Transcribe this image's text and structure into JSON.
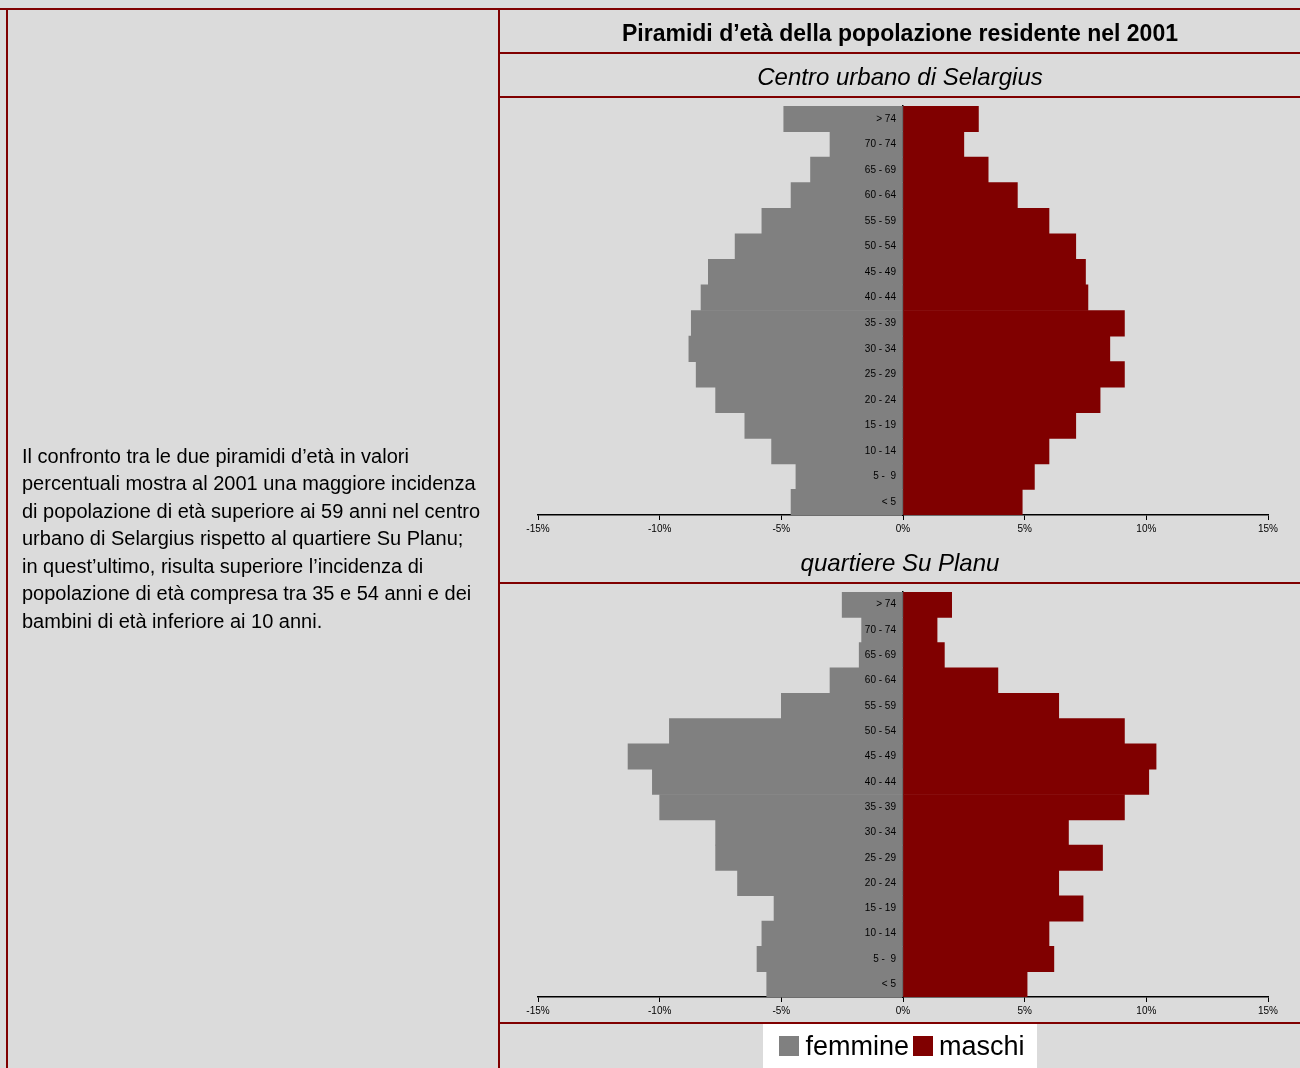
{
  "chart_data": [
    {
      "type": "other",
      "annotations": [
        "Il confronto tra le due piramidi d’età in valori percentuali mostra al 2001 una maggiore incidenza di popolazione di età superiore ai 59 anni nel centro urbano di Selargius rispetto al quartiere Su Planu; in quest’ultimo, risulta superiore l’incidenza di popolazione di età compresa tra 35 e 54 anni e dei bambini di età inferiore ai 10 anni."
      ]
    },
    {
      "type": "bar",
      "title": "Piramidi d’età della popolazione residente nel 2001",
      "subtitle": "Centro urbano di Selargius",
      "orientation": "horizontal",
      "stacked": true,
      "categories": [
        "> 74",
        "70 - 74",
        "65 - 69",
        "60 - 64",
        "55 - 59",
        "50 - 54",
        "45 - 49",
        "40 - 44",
        "35 - 39",
        "30 - 34",
        "25 - 29",
        "20 - 24",
        "15 - 19",
        "10 - 14",
        "5 -  9",
        "< 5"
      ],
      "series": [
        {
          "color": "#808080",
          "values": [
            -4.9,
            -3.0,
            -3.8,
            -4.6,
            -5.8,
            -6.9,
            -8.0,
            -8.3,
            -8.7,
            -8.8,
            -8.5,
            -7.7,
            -6.5,
            -5.4,
            -4.4,
            -4.6
          ]
        },
        {
          "color": "#800000",
          "values": [
            3.1,
            2.5,
            3.5,
            4.7,
            6.0,
            7.1,
            7.5,
            7.6,
            9.1,
            8.5,
            9.1,
            8.1,
            7.1,
            6.0,
            5.4,
            4.9
          ]
        }
      ],
      "xlim": [
        -15,
        15
      ],
      "xticks": [
        {
          "value": -15,
          "label": "-15%"
        },
        {
          "value": -10,
          "label": "-10%"
        },
        {
          "value": -5,
          "label": "-5%"
        },
        {
          "value": 0,
          "label": "0%"
        },
        {
          "value": 5,
          "label": "5%"
        },
        {
          "value": 10,
          "label": "10%"
        },
        {
          "value": 15,
          "label": "15%"
        }
      ]
    },
    {
      "type": "bar",
      "subtitle": "quartiere Su Planu",
      "orientation": "horizontal",
      "stacked": true,
      "legend": "bottom",
      "categories": [
        "> 74",
        "70 - 74",
        "65 - 69",
        "60 - 64",
        "55 - 59",
        "50 - 54",
        "45 - 49",
        "40 - 44",
        "35 - 39",
        "30 - 34",
        "25 - 29",
        "20 - 24",
        "15 - 19",
        "10 - 14",
        "5 -  9",
        "< 5"
      ],
      "series": [
        {
          "name": "femmine",
          "color": "#808080",
          "values": [
            -2.5,
            -1.7,
            -1.8,
            -3.0,
            -5.0,
            -9.6,
            -11.3,
            -10.3,
            -10.0,
            -7.7,
            -7.7,
            -6.8,
            -5.3,
            -5.8,
            -6.0,
            -5.6
          ]
        },
        {
          "name": "maschi",
          "color": "#800000",
          "values": [
            2.0,
            1.4,
            1.7,
            3.9,
            6.4,
            9.1,
            10.4,
            10.1,
            9.1,
            6.8,
            8.2,
            6.4,
            7.4,
            6.0,
            6.2,
            5.1
          ]
        }
      ],
      "xlim": [
        -15,
        15
      ],
      "xticks": [
        {
          "value": -15,
          "label": "-15%"
        },
        {
          "value": -10,
          "label": "-10%"
        },
        {
          "value": -5,
          "label": "-5%"
        },
        {
          "value": 0,
          "label": "0%"
        },
        {
          "value": 5,
          "label": "5%"
        },
        {
          "value": 10,
          "label": "10%"
        },
        {
          "value": 15,
          "label": "15%"
        }
      ]
    }
  ]
}
